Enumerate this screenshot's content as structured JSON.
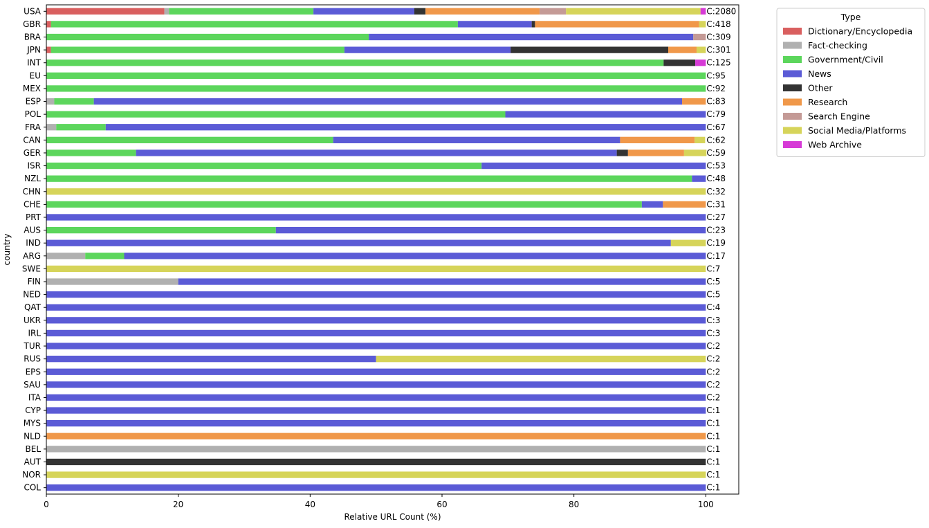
{
  "chart_data": {
    "type": "bar",
    "orientation": "horizontal",
    "stacked": true,
    "xlabel": "Relative URL Count (%)",
    "ylabel": "country",
    "xlim": [
      0,
      105
    ],
    "xticks": [
      0,
      20,
      40,
      60,
      80,
      100
    ],
    "grid": false,
    "legend_placement": "outside-top-right",
    "legend_title": "Type",
    "categories": [
      "USA",
      "GBR",
      "BRA",
      "JPN",
      "INT",
      "EU",
      "MEX",
      "ESP",
      "POL",
      "FRA",
      "CAN",
      "GER",
      "ISR",
      "NZL",
      "CHN",
      "CHE",
      "PRT",
      "AUS",
      "IND",
      "ARG",
      "SWE",
      "FIN",
      "NED",
      "QAT",
      "UKR",
      "IRL",
      "TUR",
      "RUS",
      "EPS",
      "SAU",
      "ITA",
      "CYP",
      "MYS",
      "NLD",
      "BEL",
      "AUT",
      "NOR",
      "COL"
    ],
    "count_labels": [
      "C:2080",
      "C:418",
      "C:309",
      "C:301",
      "C:125",
      "C:95",
      "C:92",
      "C:83",
      "C:79",
      "C:67",
      "C:62",
      "C:59",
      "C:53",
      "C:48",
      "C:32",
      "C:31",
      "C:27",
      "C:23",
      "C:19",
      "C:17",
      "C:7",
      "C:5",
      "C:5",
      "C:4",
      "C:3",
      "C:3",
      "C:2",
      "C:2",
      "C:2",
      "C:2",
      "C:2",
      "C:1",
      "C:1",
      "C:1",
      "C:1",
      "C:1",
      "C:1",
      "C:1"
    ],
    "series": [
      {
        "name": "Dictionary/Encyclopedia",
        "color": "#d95f5f",
        "values": [
          17.9,
          0.7,
          0,
          0.7,
          0,
          0,
          0,
          0,
          0,
          0,
          0,
          0,
          0,
          0,
          0,
          0,
          0,
          0,
          0,
          0,
          0,
          0,
          0,
          0,
          0,
          0,
          0,
          0,
          0,
          0,
          0,
          0,
          0,
          0,
          0,
          0,
          0,
          0
        ]
      },
      {
        "name": "Fact-checking",
        "color": "#b0b0b0",
        "values": [
          0.7,
          0,
          0,
          0,
          0,
          0,
          0,
          1.2,
          0,
          1.5,
          0,
          0,
          0,
          0,
          0,
          0,
          0,
          0,
          0,
          5.9,
          0,
          20,
          0,
          0,
          0,
          0,
          0,
          0,
          0,
          0,
          0,
          0,
          0,
          0,
          100,
          0,
          0,
          0
        ]
      },
      {
        "name": "Government/Civil",
        "color": "#5cd65c",
        "values": [
          21.9,
          61.7,
          48.9,
          44.5,
          93.6,
          100,
          100,
          6.0,
          69.6,
          7.5,
          43.5,
          13.6,
          66.0,
          97.9,
          0,
          90.3,
          0,
          34.8,
          0,
          5.9,
          0,
          0,
          0,
          0,
          0,
          0,
          0,
          0,
          0,
          0,
          0,
          0,
          0,
          0,
          0,
          0,
          0,
          0
        ]
      },
      {
        "name": "News",
        "color": "#5b5bd6",
        "values": [
          15.3,
          11.2,
          49.2,
          25.2,
          0,
          0,
          0,
          89.2,
          30.4,
          91.0,
          43.5,
          72.9,
          34.0,
          2.1,
          0,
          3.2,
          100,
          65.2,
          94.7,
          88.2,
          0,
          80,
          100,
          100,
          100,
          100,
          100,
          50,
          100,
          100,
          100,
          100,
          100,
          0,
          0,
          0,
          0,
          100
        ]
      },
      {
        "name": "Other",
        "color": "#333333",
        "values": [
          1.7,
          0.5,
          0,
          23.9,
          4.8,
          0,
          0,
          0,
          0,
          0,
          0,
          1.7,
          0,
          0,
          0,
          0,
          0,
          0,
          0,
          0,
          0,
          0,
          0,
          0,
          0,
          0,
          0,
          0,
          0,
          0,
          0,
          0,
          0,
          0,
          0,
          100,
          0,
          0
        ]
      },
      {
        "name": "Research",
        "color": "#f0984a",
        "values": [
          17.3,
          24.9,
          0,
          4.3,
          0,
          0,
          0,
          3.6,
          0,
          0,
          11.3,
          8.5,
          0,
          0,
          0,
          6.5,
          0,
          0,
          0,
          0,
          0,
          0,
          0,
          0,
          0,
          0,
          0,
          0,
          0,
          0,
          0,
          0,
          0,
          100,
          0,
          0,
          0,
          0
        ]
      },
      {
        "name": "Search Engine",
        "color": "#c49a96",
        "values": [
          4.0,
          0,
          1.9,
          0,
          0,
          0,
          0,
          0,
          0,
          0,
          0,
          0,
          0,
          0,
          0,
          0,
          0,
          0,
          0,
          0,
          0,
          0,
          0,
          0,
          0,
          0,
          0,
          0,
          0,
          0,
          0,
          0,
          0,
          0,
          0,
          0,
          0,
          0
        ]
      },
      {
        "name": "Social Media/Platforms",
        "color": "#d6d45a",
        "values": [
          20.4,
          1.0,
          0,
          1.4,
          0,
          0,
          0,
          0,
          0,
          0,
          1.6,
          3.4,
          0,
          0,
          100,
          0,
          0,
          0,
          5.3,
          0,
          100,
          0,
          0,
          0,
          0,
          0,
          0,
          50,
          0,
          0,
          0,
          0,
          0,
          0,
          0,
          0,
          100,
          0
        ]
      },
      {
        "name": "Web Archive",
        "color": "#d63ad6",
        "values": [
          0.8,
          0,
          0,
          0,
          1.6,
          0,
          0,
          0,
          0,
          0,
          0,
          0,
          0,
          0,
          0,
          0,
          0,
          0,
          0,
          0,
          0,
          0,
          0,
          0,
          0,
          0,
          0,
          0,
          0,
          0,
          0,
          0,
          0,
          0,
          0,
          0,
          0,
          0
        ]
      }
    ]
  }
}
